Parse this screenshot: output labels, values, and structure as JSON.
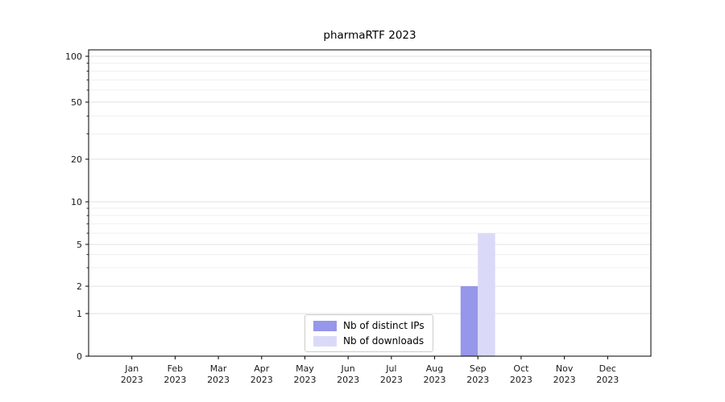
{
  "chart_data": {
    "type": "bar",
    "title": "pharmaRTF 2023",
    "year_label": "2023",
    "months": [
      "Jan",
      "Feb",
      "Mar",
      "Apr",
      "May",
      "Jun",
      "Jul",
      "Aug",
      "Sep",
      "Oct",
      "Nov",
      "Dec"
    ],
    "series": [
      {
        "name": "Nb of distinct IPs",
        "color": "#9696ea",
        "values": [
          0,
          0,
          0,
          0,
          0,
          0,
          0,
          0,
          2,
          0,
          0,
          0
        ]
      },
      {
        "name": "Nb of downloads",
        "color": "#dadaf8",
        "values": [
          0,
          0,
          0,
          0,
          0,
          0,
          0,
          0,
          6,
          0,
          0,
          0
        ]
      }
    ],
    "y_ticks": [
      0,
      1,
      2,
      5,
      10,
      20,
      50,
      100
    ],
    "y_scale": "symlog",
    "ylim": [
      0,
      110
    ],
    "grid": "horizontal",
    "legend_position": "bottom-center"
  }
}
